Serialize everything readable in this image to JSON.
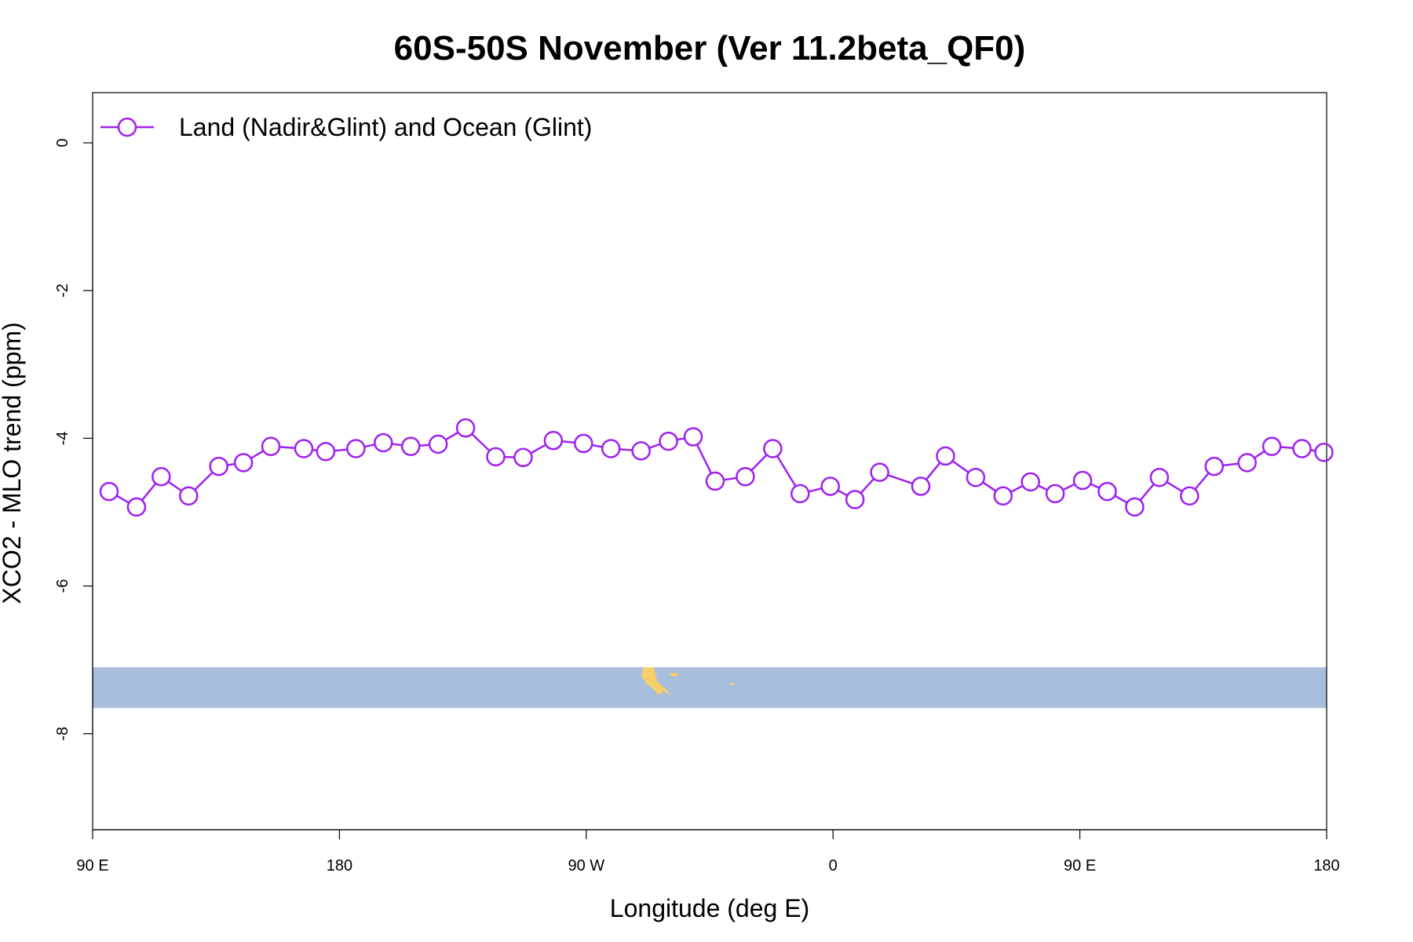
{
  "chart_data": {
    "type": "line",
    "title": "60S-50S November (Ver 11.2beta_QF0)",
    "xlabel": "Longitude (deg E)",
    "ylabel": "XCO2 - MLO trend (ppm)",
    "x_ticks": [
      {
        "value": 90,
        "label": "90 E"
      },
      {
        "value": 180,
        "label": "180"
      },
      {
        "value": 270,
        "label": "90 W"
      },
      {
        "value": 360,
        "label": "0"
      },
      {
        "value": 450,
        "label": "90 E"
      },
      {
        "value": 540,
        "label": "180"
      }
    ],
    "y_ticks": [
      {
        "value": 0,
        "label": "0"
      },
      {
        "value": -2,
        "label": "-2"
      },
      {
        "value": -4,
        "label": "-4"
      },
      {
        "value": -6,
        "label": "-6"
      },
      {
        "value": -8,
        "label": "-8"
      }
    ],
    "xlim": [
      90,
      540
    ],
    "ylim": [
      -9.3,
      0.68
    ],
    "grid": false,
    "legend_position": "top-left",
    "background_map_band": {
      "y_range": [
        -7.65,
        -7.1
      ],
      "ocean_color": "#a7bedc",
      "land_color": "#f5cf6a"
    },
    "series": [
      {
        "name": "Land (Nadir&Glint) and Ocean (Glint)",
        "color": "#a020f0",
        "marker": "open-circle",
        "x": [
          96,
          106,
          115,
          125,
          136,
          145,
          155,
          167,
          175,
          186,
          196,
          206,
          216,
          226,
          237,
          247,
          258,
          269,
          279,
          290,
          300,
          309,
          317,
          328,
          338,
          348,
          359,
          368,
          377,
          392,
          401,
          412,
          422,
          432,
          441,
          451,
          460,
          470,
          479,
          490,
          499,
          511,
          520,
          531,
          539
        ],
        "values": [
          -4.72,
          -4.93,
          -4.52,
          -4.78,
          -4.38,
          -4.33,
          -4.11,
          -4.14,
          -4.18,
          -4.14,
          -4.06,
          -4.11,
          -4.08,
          -3.86,
          -4.25,
          -4.26,
          -4.03,
          -4.07,
          -4.14,
          -4.17,
          -4.04,
          -3.98,
          -4.58,
          -4.52,
          -4.14,
          -4.75,
          -4.65,
          -4.83,
          -4.46,
          -4.65,
          -4.24,
          -4.53,
          -4.78,
          -4.59,
          -4.75,
          -4.57,
          -4.72,
          -4.93,
          -4.53,
          -4.78,
          -4.38,
          -4.33,
          -4.11,
          -4.14,
          -4.19
        ]
      }
    ]
  }
}
